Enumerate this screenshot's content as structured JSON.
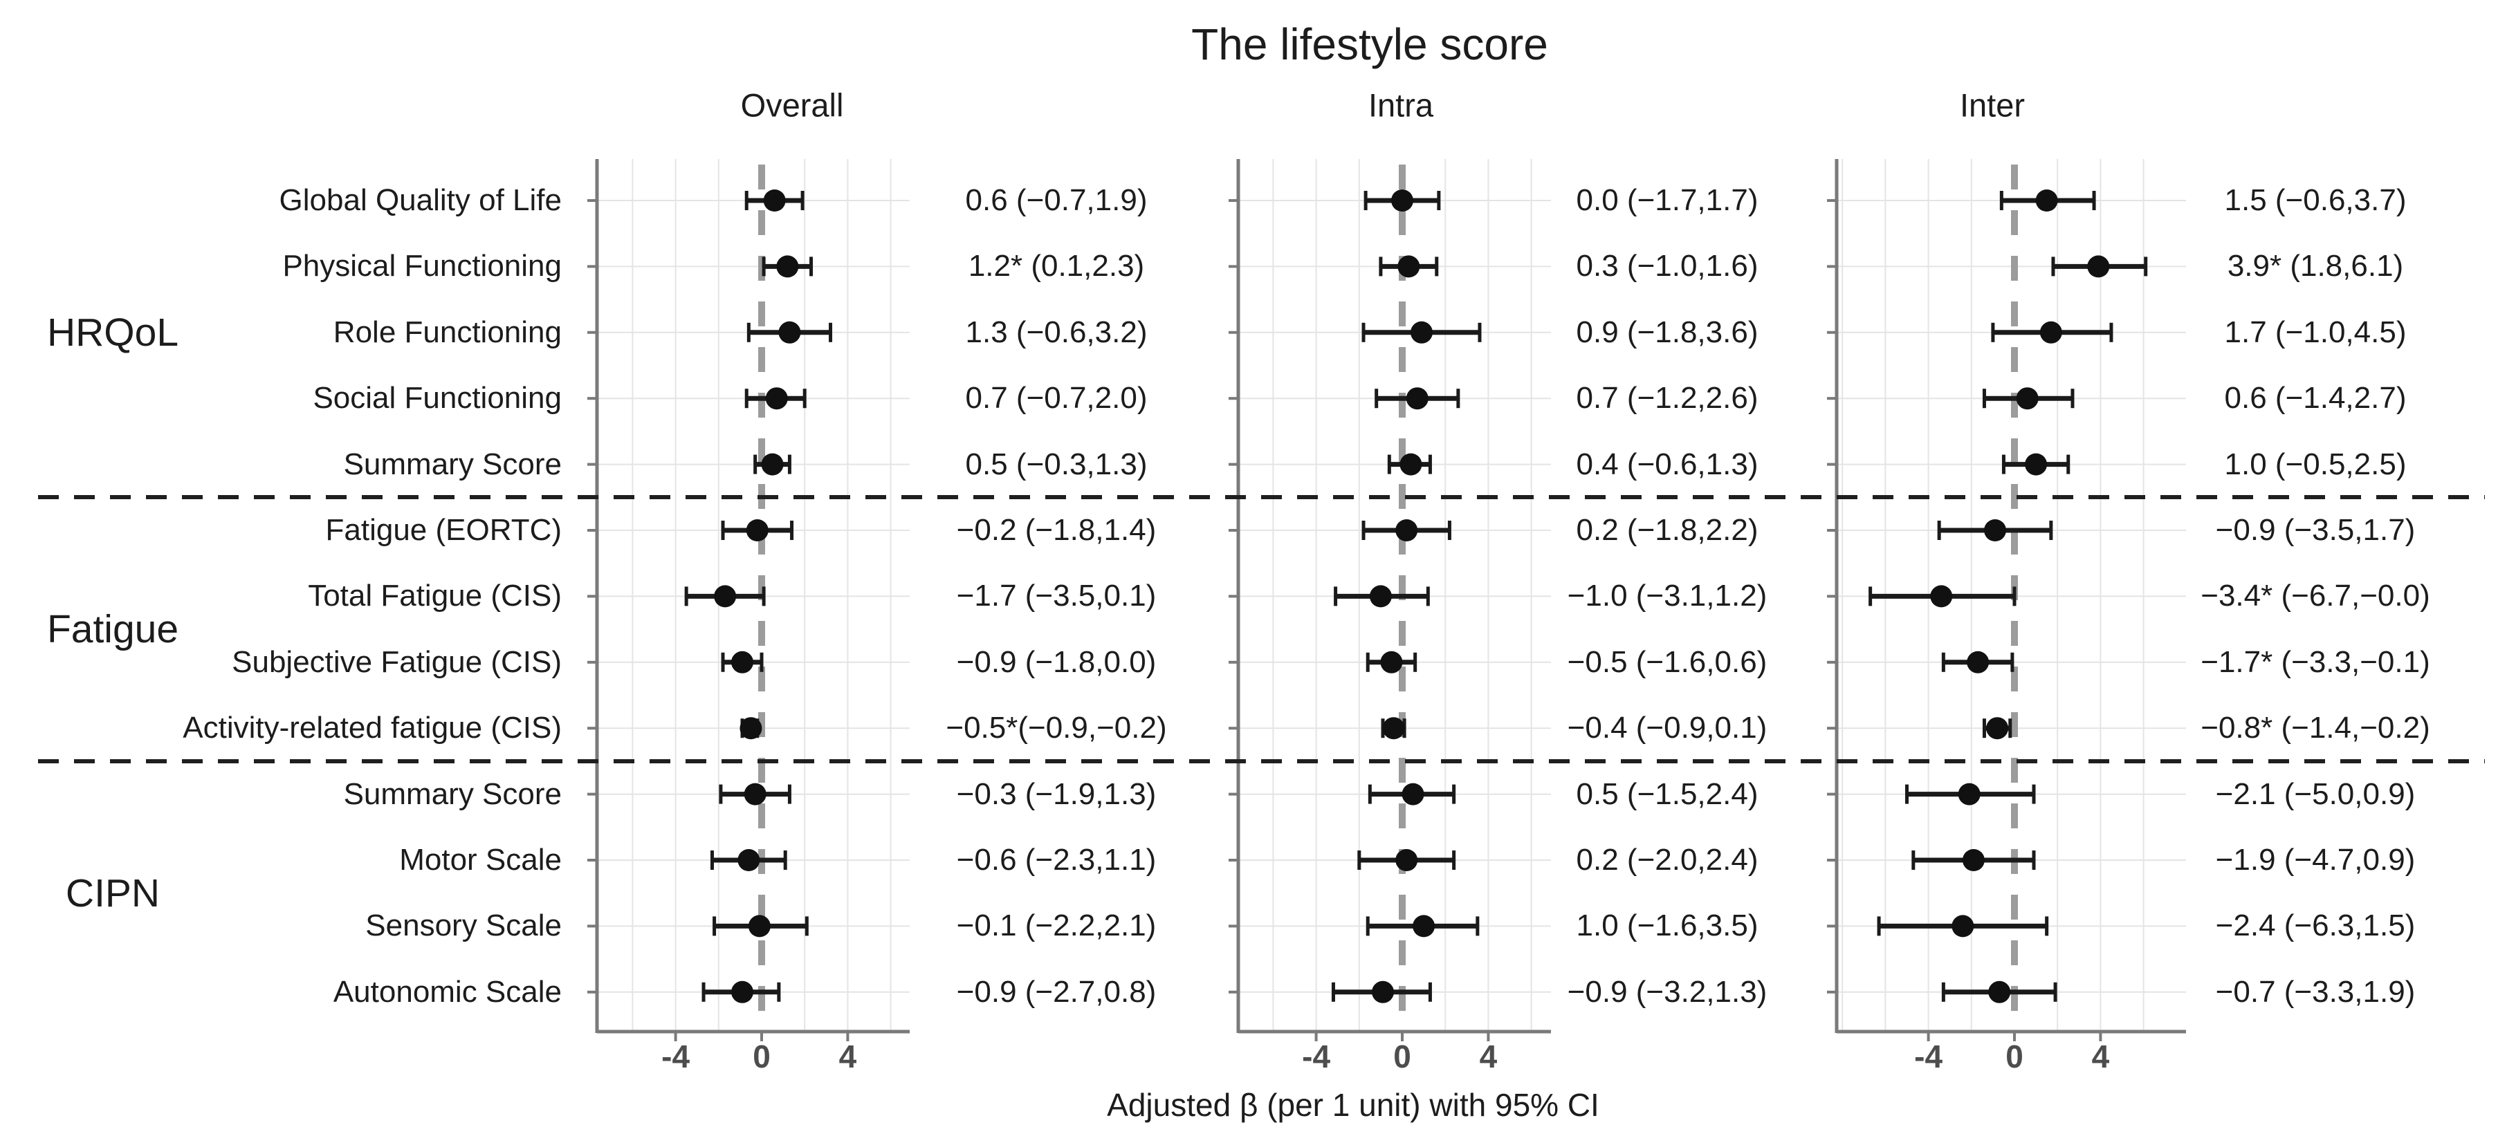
{
  "figure": {
    "title": "The lifestyle score",
    "xaxis_label": "Adjusted β (per 1 unit) with 95% CI"
  },
  "chart_data": {
    "type": "forest",
    "title": "The lifestyle score",
    "xlabel": "Adjusted β (per 1 unit) with 95% CI",
    "x_ticks": [
      -4,
      0,
      4
    ],
    "x_tick_labels": [
      "-4",
      "0",
      "4"
    ],
    "xlim": [
      -7.7,
      7.2
    ],
    "grid": "on, light gray every 2 units; dashed gray reference line at 0",
    "legend_position": "none",
    "row_groups": [
      {
        "label": "HRQoL",
        "row_indices": [
          0,
          1,
          2,
          3,
          4
        ]
      },
      {
        "label": "Fatigue",
        "row_indices": [
          5,
          6,
          7,
          8
        ]
      },
      {
        "label": "CIPN",
        "row_indices": [
          9,
          10,
          11,
          12
        ]
      }
    ],
    "categories": [
      "Global Quality of Life",
      "Physical Functioning",
      "Role Functioning",
      "Social Functioning",
      "Summary Score",
      "Fatigue (EORTC)",
      "Total Fatigue (CIS)",
      "Subjective Fatigue (CIS)",
      "Activity-related fatigue (CIS)",
      "Summary Score",
      "Motor Scale",
      "Sensory Scale",
      "Autonomic Scale"
    ],
    "series": [
      {
        "name": "Overall",
        "estimates": [
          0.6,
          1.2,
          1.3,
          0.7,
          0.5,
          -0.2,
          -1.7,
          -0.9,
          -0.5,
          -0.3,
          -0.6,
          -0.1,
          -0.9
        ],
        "ci_low": [
          -0.7,
          0.1,
          -0.6,
          -0.7,
          -0.3,
          -1.8,
          -3.5,
          -1.8,
          -0.9,
          -1.9,
          -2.3,
          -2.2,
          -2.7
        ],
        "ci_high": [
          1.9,
          2.3,
          3.2,
          2.0,
          1.3,
          1.4,
          0.1,
          0.0,
          -0.2,
          1.3,
          1.1,
          2.1,
          0.8
        ],
        "labels": [
          "0.6 (−0.7,1.9)",
          "1.2* (0.1,2.3)",
          "1.3 (−0.6,3.2)",
          "0.7 (−0.7,2.0)",
          "0.5 (−0.3,1.3)",
          "−0.2 (−1.8,1.4)",
          "−1.7 (−3.5,0.1)",
          "−0.9 (−1.8,0.0)",
          "−0.5*(−0.9,−0.2)",
          "−0.3 (−1.9,1.3)",
          "−0.6 (−2.3,1.1)",
          "−0.1 (−2.2,2.1)",
          "−0.9 (−2.7,0.8)"
        ]
      },
      {
        "name": "Intra",
        "estimates": [
          0.0,
          0.3,
          0.9,
          0.7,
          0.4,
          0.2,
          -1.0,
          -0.5,
          -0.4,
          0.5,
          0.2,
          1.0,
          -0.9
        ],
        "ci_low": [
          -1.7,
          -1.0,
          -1.8,
          -1.2,
          -0.6,
          -1.8,
          -3.1,
          -1.6,
          -0.9,
          -1.5,
          -2.0,
          -1.6,
          -3.2
        ],
        "ci_high": [
          1.7,
          1.6,
          3.6,
          2.6,
          1.3,
          2.2,
          1.2,
          0.6,
          0.1,
          2.4,
          2.4,
          3.5,
          1.3
        ],
        "labels": [
          "0.0 (−1.7,1.7)",
          "0.3 (−1.0,1.6)",
          "0.9 (−1.8,3.6)",
          "0.7 (−1.2,2.6)",
          "0.4 (−0.6,1.3)",
          "0.2 (−1.8,2.2)",
          "−1.0 (−3.1,1.2)",
          "−0.5 (−1.6,0.6)",
          "−0.4 (−0.9,0.1)",
          "0.5 (−1.5,2.4)",
          "0.2 (−2.0,2.4)",
          "1.0 (−1.6,3.5)",
          "−0.9 (−3.2,1.3)"
        ]
      },
      {
        "name": "Inter",
        "estimates": [
          1.5,
          3.9,
          1.7,
          0.6,
          1.0,
          -0.9,
          -3.4,
          -1.7,
          -0.8,
          -2.1,
          -1.9,
          -2.4,
          -0.7
        ],
        "ci_low": [
          -0.6,
          1.8,
          -1.0,
          -1.4,
          -0.5,
          -3.5,
          -6.7,
          -3.3,
          -1.4,
          -5.0,
          -4.7,
          -6.3,
          -3.3
        ],
        "ci_high": [
          3.7,
          6.1,
          4.5,
          2.7,
          2.5,
          1.7,
          -0.0,
          -0.1,
          -0.2,
          0.9,
          0.9,
          1.5,
          1.9
        ],
        "labels": [
          "1.5 (−0.6,3.7)",
          "3.9* (1.8,6.1)",
          "1.7 (−1.0,4.5)",
          "0.6 (−1.4,2.7)",
          "1.0 (−0.5,2.5)",
          "−0.9 (−3.5,1.7)",
          "−3.4* (−6.7,−0.0)",
          "−1.7* (−3.3,−0.1)",
          "−0.8* (−1.4,−0.2)",
          "−2.1 (−5.0,0.9)",
          "−1.9 (−4.7,0.9)",
          "−2.4 (−6.3,1.5)",
          "−0.7 (−3.3,1.9)"
        ]
      }
    ],
    "colors": {
      "point": "#111111",
      "error_bar": "#1a1a1a",
      "axis": "#7a7a7a",
      "gridline": "#e4e4e4",
      "zero_line": "#9c9c9c",
      "separator": "#1f1f1f",
      "tick_text": "#4d4d4d",
      "text": "#1c1c1c",
      "background": "#ffffff"
    }
  }
}
